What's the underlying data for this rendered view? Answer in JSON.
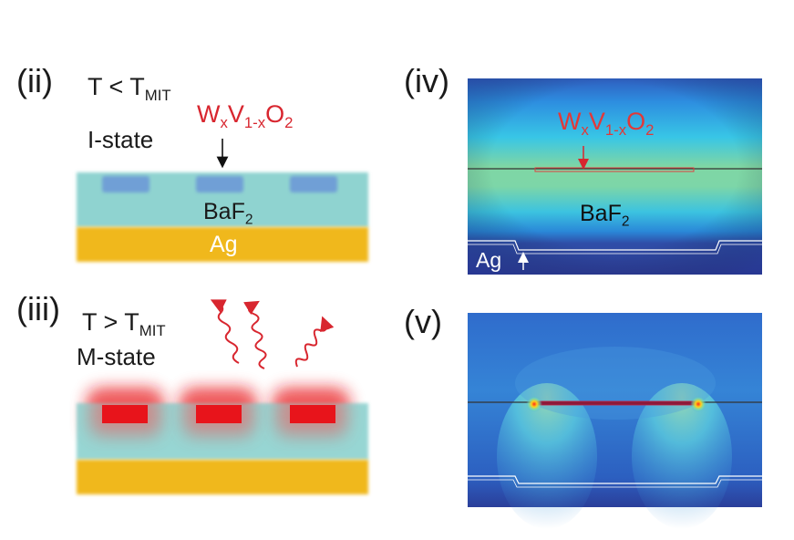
{
  "panels": {
    "ii": {
      "label": "(ii)",
      "condition": {
        "prefix": "T < T",
        "sub": "MIT"
      },
      "state": "I-state",
      "material": {
        "w": "W",
        "w_sub": "x",
        "v": "V",
        "v_sub": "1-x",
        "o": "O",
        "o_sub": "2"
      },
      "substrate": {
        "main": "BaF",
        "sub": "2"
      },
      "metal": "Ag"
    },
    "iii": {
      "label": "(iii)",
      "condition": {
        "prefix": "T > T",
        "sub": "MIT"
      },
      "state": "M-state"
    },
    "iv": {
      "label": "(iv)",
      "material": {
        "w": "W",
        "w_sub": "x",
        "v": "V",
        "v_sub": "1-x",
        "o": "O",
        "o_sub": "2"
      },
      "substrate": {
        "main": "BaF",
        "sub": "2"
      },
      "metal": "Ag"
    },
    "v": {
      "label": "(v)"
    }
  },
  "colors": {
    "baf2": "#8fd3d0",
    "ag": "#f0b81e",
    "insulating_patch": "#6f9fd6",
    "metallic_patch": "#e8141b",
    "annotation_red": "#d8262f"
  }
}
